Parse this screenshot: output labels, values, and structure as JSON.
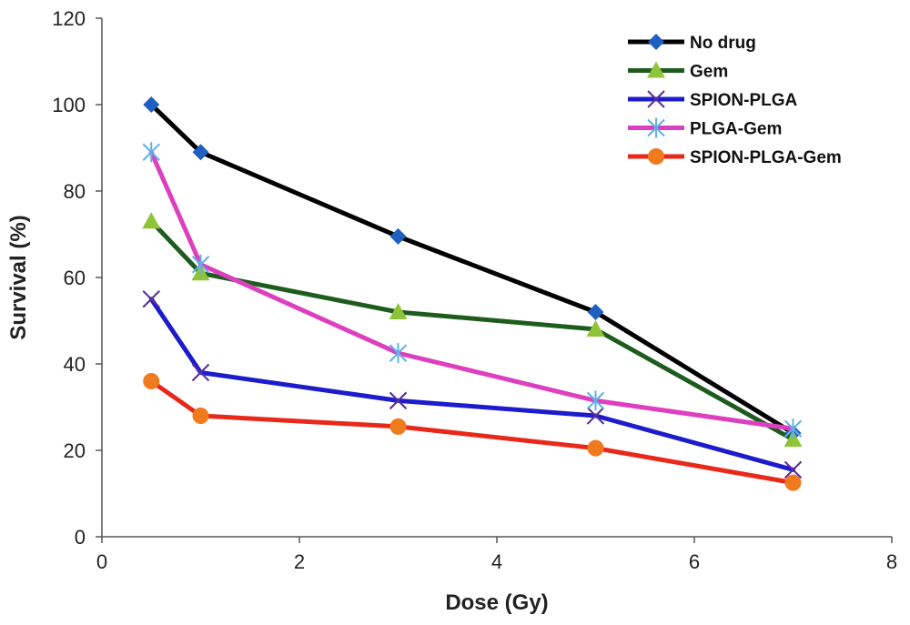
{
  "chart_data": {
    "type": "line",
    "title": "",
    "xlabel": "Dose (Gy)",
    "ylabel": "Survival (%)",
    "xlim": [
      0,
      8
    ],
    "ylim": [
      0,
      120
    ],
    "xticks": [
      "0",
      "2",
      "4",
      "6",
      "8"
    ],
    "yticks": [
      "0",
      "20",
      "40",
      "60",
      "80",
      "100",
      "120"
    ],
    "grid": false,
    "legend_position": "top-right",
    "x": [
      0.5,
      1,
      3,
      5,
      7
    ],
    "series": [
      {
        "name": "No drug",
        "values": [
          100,
          89,
          69.5,
          52,
          24
        ],
        "color": "#000000",
        "marker_color": "#1f5fbf",
        "marker": "diamond"
      },
      {
        "name": "Gem",
        "values": [
          73,
          61,
          52,
          48,
          22.5
        ],
        "color": "#1e5c1e",
        "marker_color": "#8fc43a",
        "marker": "triangle"
      },
      {
        "name": "SPION-PLGA",
        "values": [
          55,
          38,
          31.5,
          28,
          15.5
        ],
        "color": "#1c1ccc",
        "marker_color": "#5a2d9c",
        "marker": "x"
      },
      {
        "name": "PLGA-Gem",
        "values": [
          89,
          63,
          42.5,
          31.5,
          25
        ],
        "color": "#dd3fbf",
        "marker_color": "#5fb0e8",
        "marker": "star"
      },
      {
        "name": "SPION-PLGA-Gem",
        "values": [
          36,
          28,
          25.5,
          20.5,
          12.5
        ],
        "color": "#e8291a",
        "marker_color": "#f07a1e",
        "marker": "circle"
      }
    ]
  }
}
